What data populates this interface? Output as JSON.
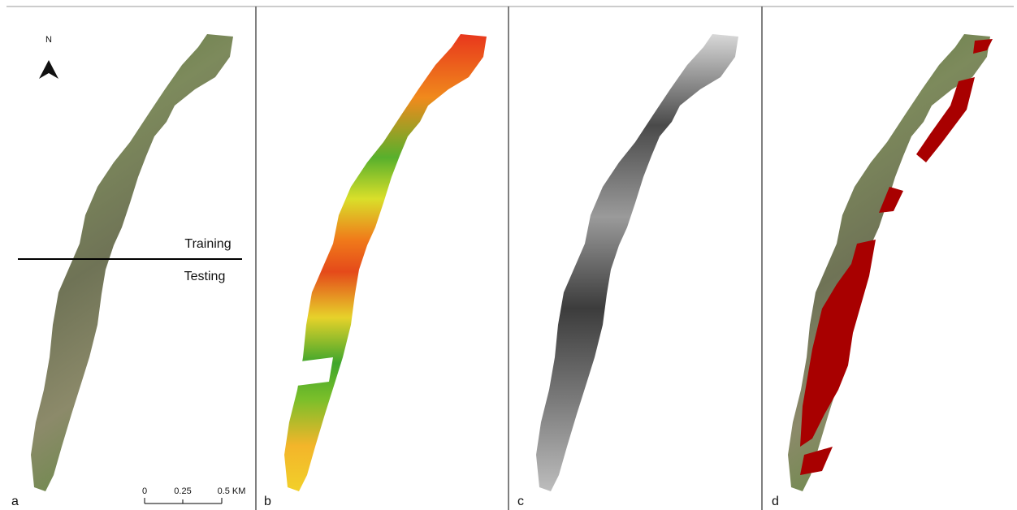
{
  "north_label": "N",
  "split_labels": {
    "training": "Training",
    "testing": "Testing"
  },
  "scale_bar": [
    "0",
    "0.25",
    "0.5 KM"
  ],
  "panels": [
    "a",
    "b",
    "c",
    "d"
  ]
}
